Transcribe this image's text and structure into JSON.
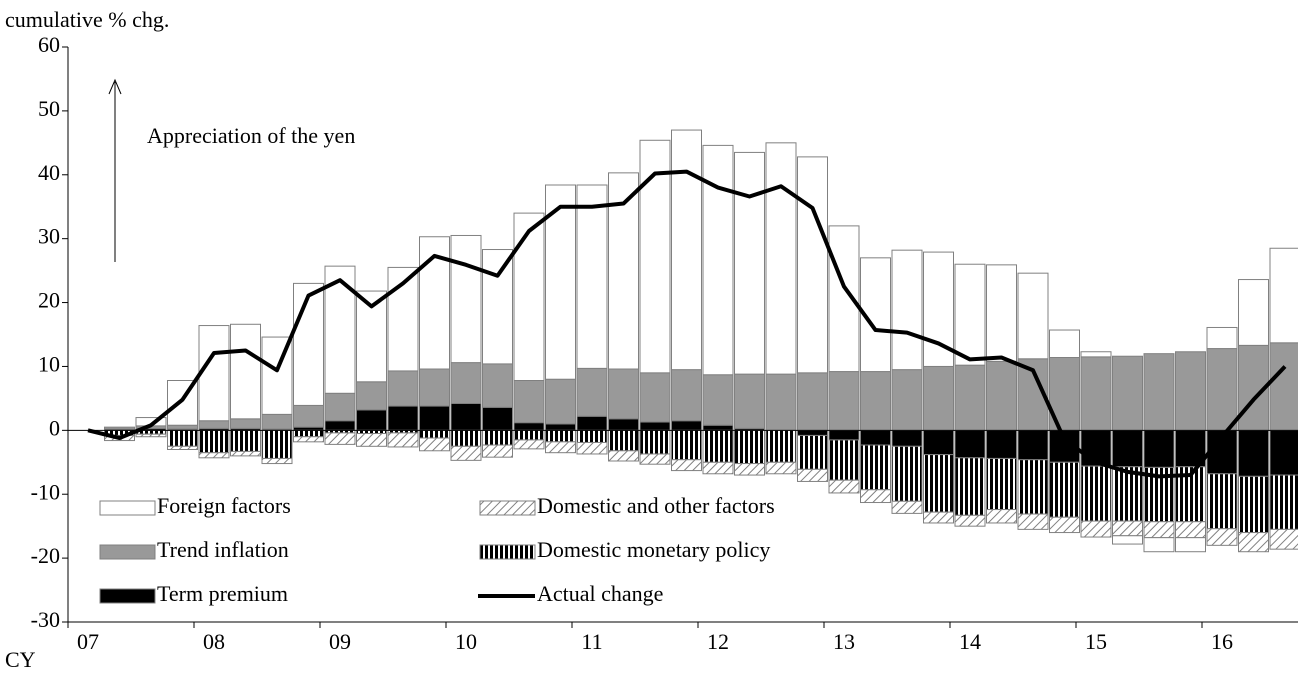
{
  "chart_data": {
    "type": "bar",
    "y_label": "cumulative % chg.",
    "x_label": "CY",
    "annotation": "Appreciation of the yen",
    "categories": [
      "07",
      null,
      null,
      null,
      "08",
      null,
      null,
      null,
      "09",
      null,
      null,
      null,
      "10",
      null,
      null,
      null,
      "11",
      null,
      null,
      null,
      "12",
      null,
      null,
      null,
      "13",
      null,
      null,
      null,
      "14",
      null,
      null,
      null,
      "15",
      null,
      null,
      null,
      "16",
      null,
      null
    ],
    "ylim": [
      -30,
      60
    ],
    "yticks": [
      -30,
      -20,
      -10,
      0,
      10,
      20,
      30,
      40,
      50,
      60
    ],
    "series": [
      {
        "name": "Term premium",
        "color": "#000000",
        "pattern": "solid",
        "values": [
          null,
          0.2,
          0.3,
          0.2,
          0.3,
          0.3,
          0.2,
          0.5,
          1.5,
          3.2,
          3.8,
          3.8,
          4.2,
          3.6,
          1.2,
          1.0,
          2.2,
          1.8,
          1.3,
          1.5,
          0.8,
          0.3,
          0,
          -0.8,
          -1.5,
          -2.3,
          -2.5,
          -3.8,
          -4.3,
          -4.4,
          -4.6,
          -5.0,
          -5.6,
          -5.7,
          -5.8,
          -5.7,
          -6.8,
          -7.2,
          -7.0
        ]
      },
      {
        "name": "Trend inflation",
        "color": "#999999",
        "pattern": "solid",
        "values": [
          null,
          0.3,
          0.4,
          0.6,
          1.2,
          1.5,
          2.3,
          3.4,
          4.3,
          4.4,
          5.5,
          5.8,
          6.4,
          6.8,
          6.6,
          7.0,
          7.5,
          7.8,
          7.7,
          8.0,
          7.9,
          8.5,
          8.8,
          9.0,
          9.2,
          9.2,
          9.5,
          10.0,
          10.2,
          10.8,
          11.2,
          11.4,
          11.5,
          11.6,
          12.0,
          12.3,
          12.8,
          13.3,
          13.7
        ]
      },
      {
        "name": "Domestic monetary policy",
        "color": "#000000",
        "pattern": "vertical",
        "values": [
          null,
          -0.8,
          -0.6,
          -2.5,
          -3.5,
          -3.3,
          -4.4,
          -1.0,
          -0.4,
          -0.5,
          -0.4,
          -1.2,
          -2.5,
          -2.3,
          -1.5,
          -1.8,
          -1.9,
          -3.2,
          -3.7,
          -4.6,
          -5.0,
          -5.2,
          -5.0,
          -5.3,
          -6.3,
          -7.0,
          -8.6,
          -9.0,
          -9.0,
          -8.0,
          -8.5,
          -8.6,
          -8.6,
          -8.5,
          -8.5,
          -8.6,
          -8.6,
          -8.8,
          -8.5
        ]
      },
      {
        "name": "Domestic and other factors",
        "color": "#808080",
        "pattern": "diagonal",
        "values": [
          null,
          -0.8,
          -0.4,
          -0.5,
          -0.8,
          -0.7,
          -0.8,
          -0.8,
          -1.8,
          -2.0,
          -2.2,
          -2.0,
          -2.2,
          -1.9,
          -1.4,
          -1.7,
          -1.8,
          -1.6,
          -1.6,
          -1.7,
          -1.8,
          -1.8,
          -1.8,
          -1.9,
          -2.0,
          -2.0,
          -1.9,
          -1.7,
          -1.7,
          -2.1,
          -2.4,
          -2.4,
          -2.5,
          -2.3,
          -2.5,
          -2.5,
          -2.6,
          -3.0,
          -3.1
        ]
      },
      {
        "name": "Foreign factors",
        "color": "#ffffff",
        "pattern": "solid",
        "values": [
          null,
          0,
          1.3,
          7.0,
          14.9,
          14.8,
          12.1,
          19.1,
          19.9,
          14.2,
          16.2,
          20.7,
          19.9,
          17.9,
          26.2,
          30.4,
          28.7,
          30.7,
          36.4,
          37.5,
          35.9,
          34.7,
          36.2,
          33.8,
          22.8,
          17.8,
          18.7,
          17.9,
          15.8,
          15.1,
          13.4,
          4.3,
          0.8,
          -1.3,
          -2.2,
          -2.2,
          3.3,
          10.3,
          14.8
        ]
      },
      {
        "name": "Actual change",
        "color": "#000000",
        "type": "line",
        "values": [
          0,
          -1.2,
          0.8,
          4.8,
          12.1,
          12.5,
          9.4,
          21.1,
          23.5,
          19.4,
          23,
          27.3,
          25.9,
          24.2,
          31.2,
          35,
          35,
          35.5,
          40.2,
          40.5,
          38,
          36.6,
          38.2,
          34.8,
          22.5,
          15.7,
          15.3,
          13.6,
          11.1,
          11.4,
          9.4,
          -1.5,
          -5,
          -6.5,
          -7.2,
          -7,
          -1,
          4.8,
          10
        ]
      }
    ]
  }
}
